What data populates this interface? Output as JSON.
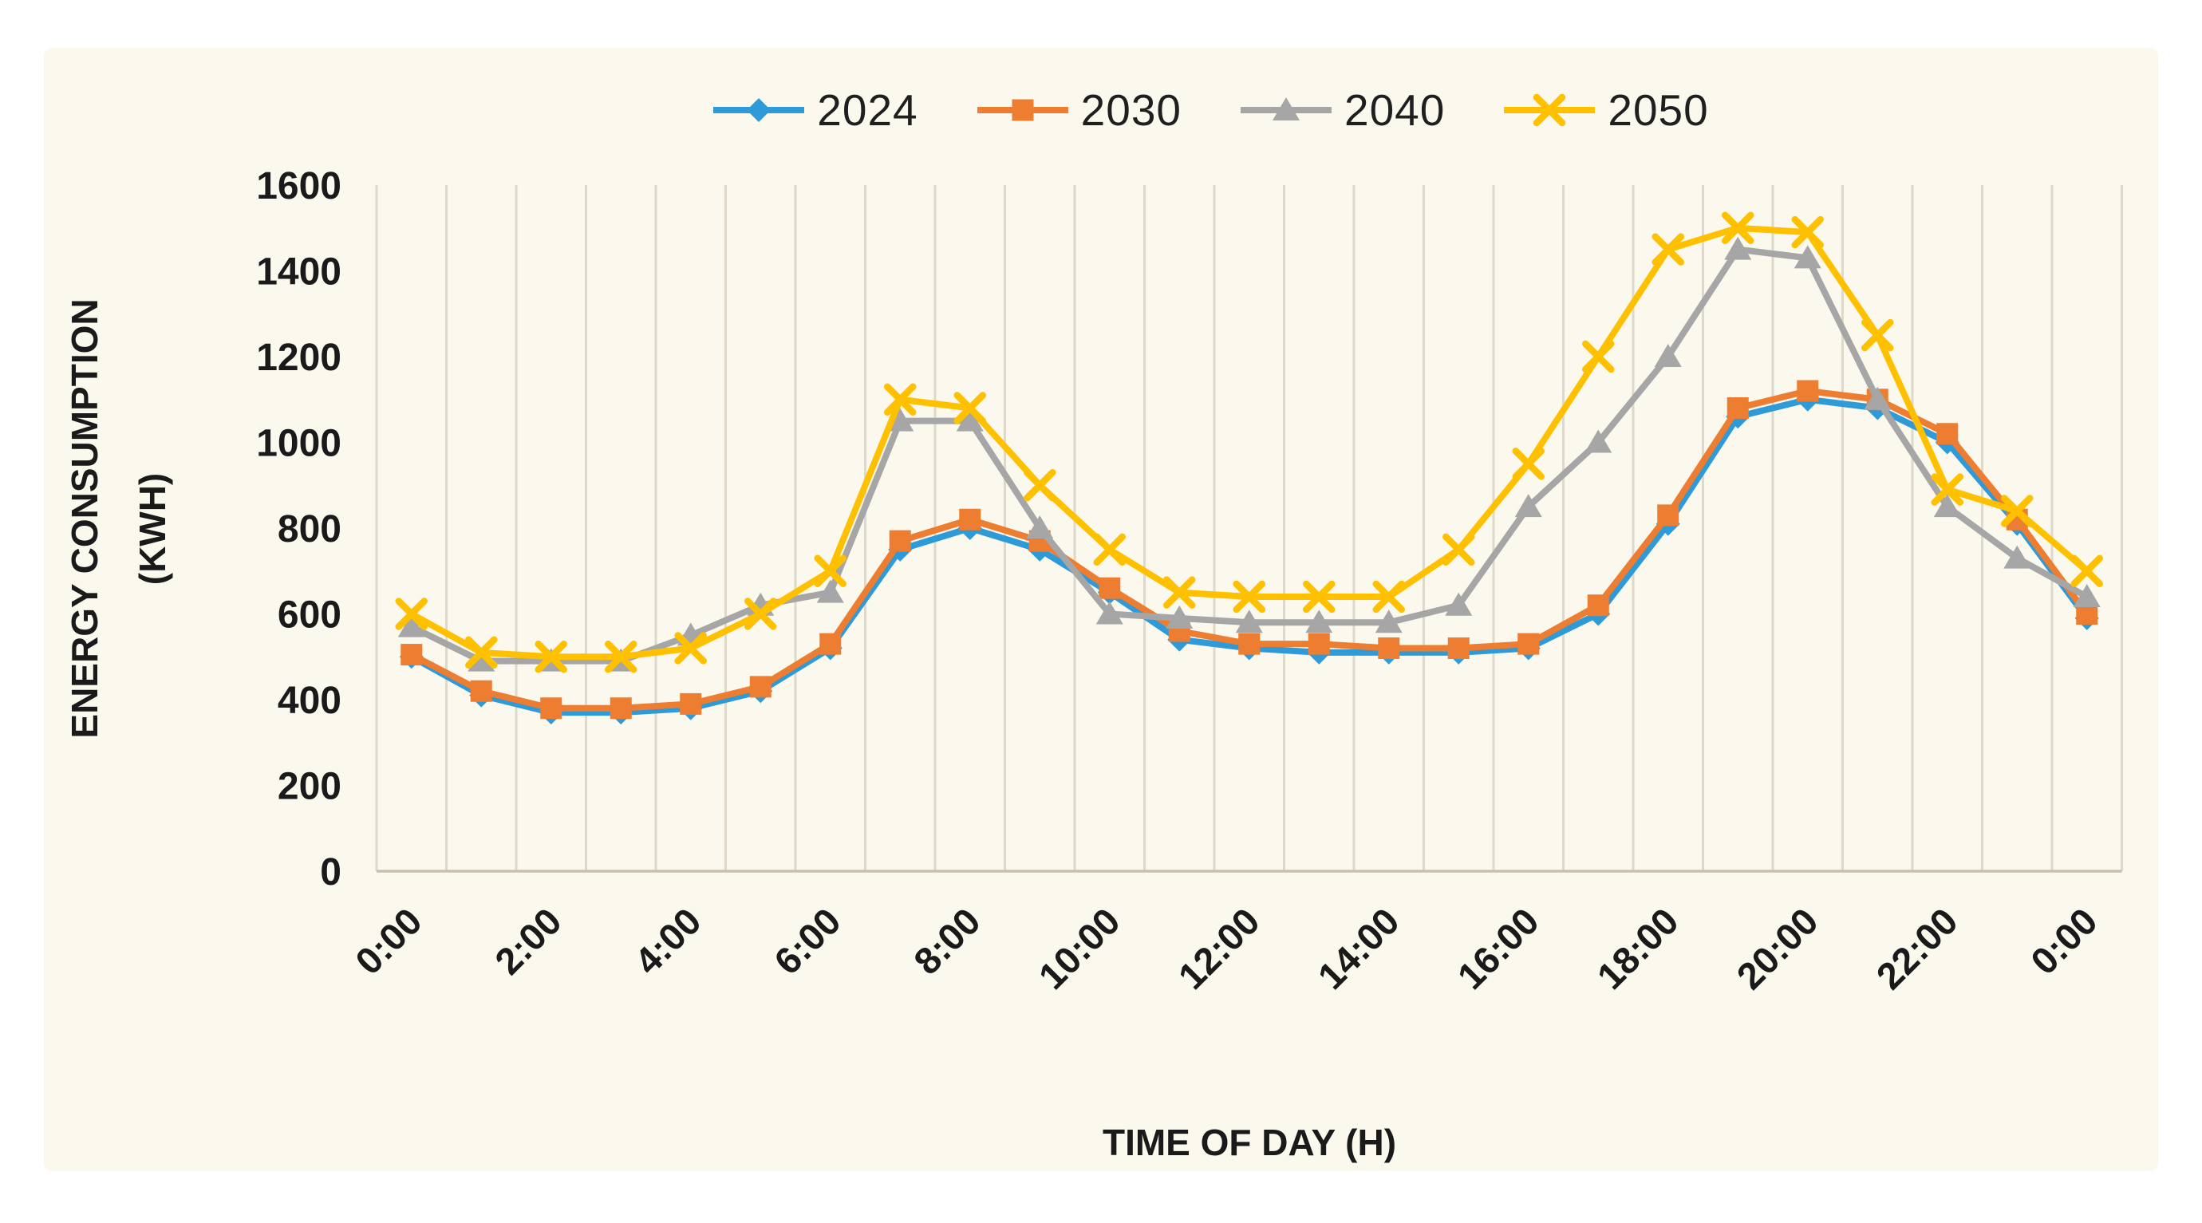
{
  "figure": {
    "panel_bg": "#fbf8ee",
    "page_bg": "#ffffff",
    "grid_color": "#ded9cb",
    "axis_line_color": "#c9bfae",
    "text_color": "#1a1a1a"
  },
  "chart_data": {
    "type": "line",
    "title": "",
    "xlabel": "TIME OF DAY (H)",
    "ylabel_line1": "ENERGY CONSUMPTION",
    "ylabel_line2": "(KWH)",
    "ylim": [
      0,
      1600
    ],
    "y_ticks": [
      0,
      200,
      400,
      600,
      800,
      1000,
      1200,
      1400,
      1600
    ],
    "grid": "vertical-only",
    "legend_position": "top-center",
    "x_hours": [
      0,
      1,
      2,
      3,
      4,
      5,
      6,
      7,
      8,
      9,
      10,
      11,
      12,
      13,
      14,
      15,
      16,
      17,
      18,
      19,
      20,
      21,
      22,
      23,
      24
    ],
    "x_tick_hours": [
      0,
      2,
      4,
      6,
      8,
      10,
      12,
      14,
      16,
      18,
      20,
      22,
      24
    ],
    "x_tick_labels": [
      "0:00",
      "2:00",
      "4:00",
      "6:00",
      "8:00",
      "10:00",
      "12:00",
      "14:00",
      "16:00",
      "18:00",
      "20:00",
      "22:00",
      "0:00"
    ],
    "series": [
      {
        "name": "2024",
        "color": "#2e9ad8",
        "marker": "diamond",
        "values": [
          500,
          410,
          370,
          370,
          380,
          420,
          520,
          750,
          800,
          750,
          650,
          540,
          520,
          510,
          510,
          510,
          520,
          600,
          810,
          1060,
          1100,
          1080,
          1000,
          810,
          590
        ]
      },
      {
        "name": "2030",
        "color": "#ed7d31",
        "marker": "square",
        "values": [
          505,
          420,
          380,
          380,
          390,
          430,
          530,
          770,
          820,
          770,
          660,
          560,
          530,
          530,
          520,
          520,
          530,
          620,
          830,
          1080,
          1120,
          1100,
          1020,
          820,
          600
        ]
      },
      {
        "name": "2040",
        "color": "#a6a6a6",
        "marker": "triangle",
        "values": [
          570,
          490,
          490,
          490,
          550,
          620,
          650,
          1050,
          1050,
          800,
          600,
          590,
          580,
          580,
          580,
          620,
          850,
          1000,
          1200,
          1450,
          1430,
          1100,
          850,
          730,
          640
        ]
      },
      {
        "name": "2050",
        "color": "#ffc000",
        "marker": "x",
        "values": [
          600,
          510,
          500,
          500,
          520,
          600,
          700,
          1100,
          1080,
          900,
          750,
          650,
          640,
          640,
          640,
          750,
          950,
          1200,
          1450,
          1500,
          1490,
          1250,
          890,
          840,
          700
        ]
      }
    ]
  }
}
